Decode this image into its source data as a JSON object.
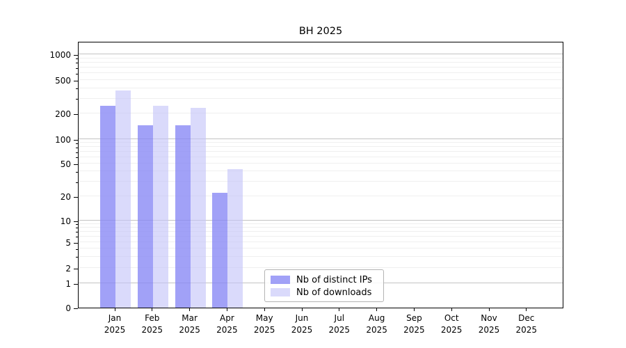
{
  "chart_data": {
    "type": "bar",
    "title": "BH 2025",
    "year_label": "2025",
    "categories": [
      "Jan 2025",
      "Feb 2025",
      "Mar 2025",
      "Apr 2025",
      "May 2025",
      "Jun 2025",
      "Jul 2025",
      "Aug 2025",
      "Sep 2025",
      "Oct 2025",
      "Nov 2025",
      "Dec 2025"
    ],
    "months": [
      "Jan",
      "Feb",
      "Mar",
      "Apr",
      "May",
      "Jun",
      "Jul",
      "Aug",
      "Sep",
      "Oct",
      "Nov",
      "Dec"
    ],
    "series": [
      {
        "name": "Nb of distinct IPs",
        "color": "rgba(134,134,245,0.78)",
        "color_hex": "#a1a1f7",
        "values": [
          245,
          145,
          145,
          22,
          0,
          0,
          0,
          0,
          0,
          0,
          0,
          0
        ]
      },
      {
        "name": "Nb of downloads",
        "color": "rgba(196,196,249,0.62)",
        "color_hex": "#dadafb",
        "values": [
          375,
          245,
          235,
          43,
          0,
          0,
          0,
          0,
          0,
          0,
          0,
          0
        ]
      }
    ],
    "yticks": [
      0,
      1,
      2,
      5,
      10,
      20,
      50,
      100,
      200,
      500,
      1000
    ],
    "yscale": "symlog",
    "ylim": [
      0,
      1500
    ],
    "grid": "horizontal, major + minor",
    "legend_position": "lower center",
    "major_grid_color": "#c3c3c3",
    "minor_grid_color": "#efefef"
  }
}
